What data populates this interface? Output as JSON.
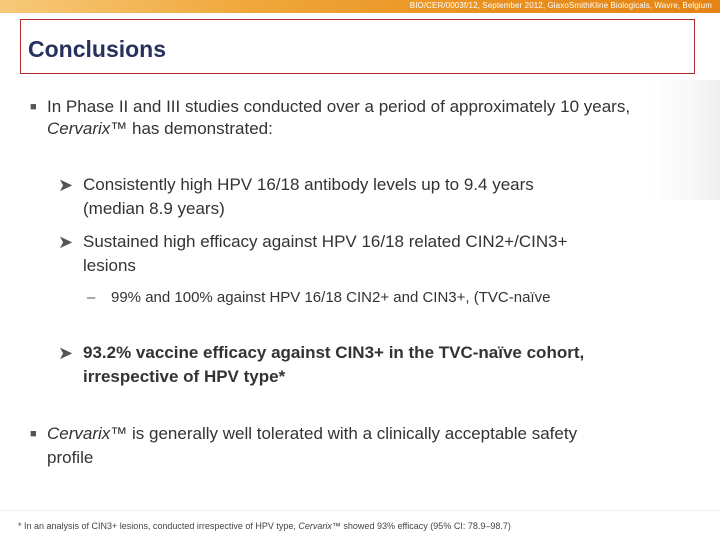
{
  "header": {
    "text": "BIO/CER/0003f/12, September 2012, GlaxoSmithKline Biologicals, Wavre, Belgium",
    "bar_colors": [
      "#f7c97a",
      "#e38516"
    ]
  },
  "title": "Conclusions",
  "bullets": {
    "b1_line1": "In Phase II and III studies conducted over a period of approximately 10 years,",
    "b1_line2_italic": "Cervarix",
    "b1_line2_rest": "™ has demonstrated:",
    "s1_line1": "Consistently high HPV 16/18 antibody levels up to 9.4 years",
    "s1_line2": "(median 8.9 years)",
    "s2_line1": "Sustained high efficacy against HPV 16/18 related CIN2+/CIN3+",
    "s2_line2": "lesions",
    "d1": "99% and 100% against HPV 16/18 CIN2+ and CIN3+, (TVC-naïve",
    "s3_line1": "93.2% vaccine efficacy against CIN3+ in the TVC-naïve cohort,",
    "s3_line2": "irrespective of HPV type*",
    "b2_line1_italic": "Cervarix",
    "b2_line1_rest": "™ is generally well tolerated with a clinically acceptable safety",
    "b2_line2": "profile"
  },
  "footnote": {
    "pre": "* In an analysis of CIN3+ lesions, conducted irrespective of HPV type, ",
    "italic": "Cervarix",
    "post": "™ showed 93% efficacy (95% CI: 78.9–98.7)"
  },
  "colors": {
    "title": "#27315e",
    "title_border": "#b22a2a",
    "body_text": "#333333"
  }
}
